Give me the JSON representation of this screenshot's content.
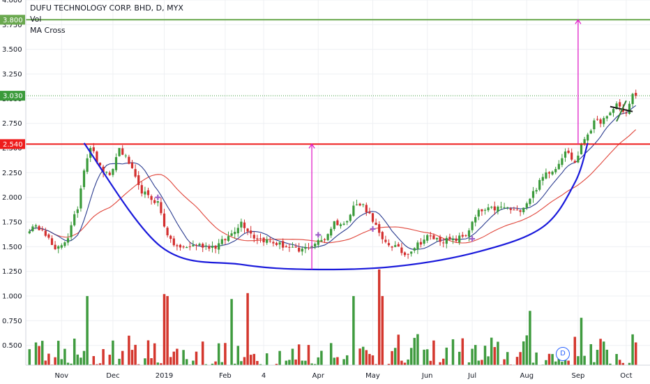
{
  "legend": {
    "title": "DUFU TECHNOLOGY CORP. BHD, D, MYX",
    "vol": "Vol",
    "ma": "MA Cross"
  },
  "badge": "D",
  "colors": {
    "up": "#3a9a3a",
    "down": "#d32f2f",
    "vol_up": "#3f9b3f",
    "vol_down": "#d4372e",
    "ma_fast": "#2a3b8f",
    "ma_slow": "#e0453a",
    "cup": "#1a1adb",
    "resistance": "#ee1c1c",
    "target": "#6aa84f",
    "arrow": "#e020c8",
    "cross": "#9c5fc7"
  },
  "chart_data": {
    "type": "candlestick",
    "symbol": "DUFU TECHNOLOGY CORP. BHD",
    "interval": "D",
    "exchange": "MYX",
    "y_axis": {
      "ticks": [
        "4.000",
        "3.750",
        "3.500",
        "3.250",
        "3.000",
        "2.750",
        "2.500",
        "2.250",
        "2.000",
        "1.750",
        "1.500",
        "1.250",
        "1.000",
        "0.750",
        "0.500"
      ],
      "range": [
        0.3,
        4.0
      ]
    },
    "x_axis": {
      "labels": [
        "Nov",
        "Dec",
        "2019",
        "Feb",
        "4",
        "Apr",
        "May",
        "Jun",
        "Jul",
        "Aug",
        "Sep",
        "Oct"
      ],
      "label_bar_index": [
        10,
        26,
        42,
        61,
        73,
        90,
        107,
        124,
        138,
        155,
        171,
        186
      ]
    },
    "price_tags": [
      {
        "label": "3.800",
        "value": 3.8,
        "kind": "target"
      },
      {
        "label": "3.030",
        "value": 3.03,
        "kind": "last"
      },
      {
        "label": "2.540",
        "value": 2.54,
        "kind": "resistance"
      }
    ],
    "anchors": [
      {
        "i": 0,
        "c": 1.68
      },
      {
        "i": 4,
        "c": 1.7
      },
      {
        "i": 8,
        "c": 1.45
      },
      {
        "i": 12,
        "c": 1.6
      },
      {
        "i": 15,
        "c": 1.9
      },
      {
        "i": 17,
        "c": 2.3
      },
      {
        "i": 19,
        "c": 2.52
      },
      {
        "i": 22,
        "c": 2.3
      },
      {
        "i": 25,
        "c": 2.2
      },
      {
        "i": 28,
        "c": 2.5
      },
      {
        "i": 31,
        "c": 2.35
      },
      {
        "i": 34,
        "c": 2.1
      },
      {
        "i": 37,
        "c": 2.0
      },
      {
        "i": 40,
        "c": 1.95
      },
      {
        "i": 42,
        "c": 1.72
      },
      {
        "i": 44,
        "c": 1.55
      },
      {
        "i": 47,
        "c": 1.48
      },
      {
        "i": 52,
        "c": 1.52
      },
      {
        "i": 58,
        "c": 1.5
      },
      {
        "i": 62,
        "c": 1.6
      },
      {
        "i": 66,
        "c": 1.75
      },
      {
        "i": 70,
        "c": 1.6
      },
      {
        "i": 75,
        "c": 1.55
      },
      {
        "i": 80,
        "c": 1.5
      },
      {
        "i": 84,
        "c": 1.45
      },
      {
        "i": 88,
        "c": 1.52
      },
      {
        "i": 92,
        "c": 1.58
      },
      {
        "i": 95,
        "c": 1.75
      },
      {
        "i": 98,
        "c": 1.72
      },
      {
        "i": 101,
        "c": 1.92
      },
      {
        "i": 104,
        "c": 1.92
      },
      {
        "i": 107,
        "c": 1.78
      },
      {
        "i": 110,
        "c": 1.55
      },
      {
        "i": 114,
        "c": 1.5
      },
      {
        "i": 117,
        "c": 1.42
      },
      {
        "i": 120,
        "c": 1.5
      },
      {
        "i": 124,
        "c": 1.6
      },
      {
        "i": 128,
        "c": 1.57
      },
      {
        "i": 132,
        "c": 1.56
      },
      {
        "i": 136,
        "c": 1.62
      },
      {
        "i": 140,
        "c": 1.85
      },
      {
        "i": 144,
        "c": 1.88
      },
      {
        "i": 148,
        "c": 1.9
      },
      {
        "i": 152,
        "c": 1.85
      },
      {
        "i": 155,
        "c": 1.95
      },
      {
        "i": 158,
        "c": 2.1
      },
      {
        "i": 161,
        "c": 2.25
      },
      {
        "i": 164,
        "c": 2.3
      },
      {
        "i": 167,
        "c": 2.48
      },
      {
        "i": 170,
        "c": 2.35
      },
      {
        "i": 173,
        "c": 2.6
      },
      {
        "i": 176,
        "c": 2.75
      },
      {
        "i": 180,
        "c": 2.8
      },
      {
        "i": 183,
        "c": 2.95
      },
      {
        "i": 186,
        "c": 2.85
      },
      {
        "i": 188,
        "c": 3.03
      }
    ],
    "volume_scale_max": 1.27,
    "volume_highlights": [
      {
        "i": 18,
        "v": 1.0
      },
      {
        "i": 42,
        "v": 1.02
      },
      {
        "i": 43,
        "v": 1.0
      },
      {
        "i": 63,
        "v": 0.97
      },
      {
        "i": 68,
        "v": 1.03
      },
      {
        "i": 101,
        "v": 1.0
      },
      {
        "i": 109,
        "v": 1.27
      },
      {
        "i": 110,
        "v": 1.0
      },
      {
        "i": 156,
        "v": 0.85
      },
      {
        "i": 172,
        "v": 0.78
      }
    ],
    "ma_fast_period": 9,
    "ma_slow_period": 26,
    "cross_markers": [
      {
        "i": 40,
        "v": 2.0
      },
      {
        "i": 90,
        "v": 1.62
      },
      {
        "i": 107,
        "v": 1.68
      },
      {
        "i": 138,
        "v": 1.58
      }
    ],
    "cup_curve": [
      {
        "i": 17,
        "v": 2.55
      },
      {
        "i": 41,
        "v": 1.5
      },
      {
        "i": 66,
        "v": 1.32
      },
      {
        "i": 88,
        "v": 1.27
      },
      {
        "i": 114,
        "v": 1.3
      },
      {
        "i": 140,
        "v": 1.45
      },
      {
        "i": 160,
        "v": 1.7
      },
      {
        "i": 170,
        "v": 2.15
      },
      {
        "i": 174,
        "v": 2.55
      }
    ],
    "resistance_level": 2.54,
    "target_level": 3.8,
    "last_price": 3.03,
    "measure_arrows": [
      {
        "i": 88,
        "from": 1.27,
        "to": 2.54
      },
      {
        "i": 171,
        "from": 2.54,
        "to": 3.8
      }
    ],
    "flag_pattern": [
      {
        "i": 181,
        "v": 2.92
      },
      {
        "i": 188,
        "v": 2.87
      },
      {
        "i": 183,
        "v": 2.77
      },
      {
        "i": 186,
        "v": 2.98
      }
    ],
    "n_bars": 190
  }
}
